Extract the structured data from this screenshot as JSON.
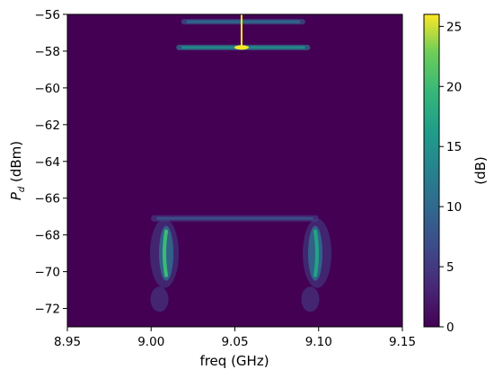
{
  "chart_data": {
    "type": "heatmap",
    "title": "",
    "xlabel": "freq (GHz)",
    "ylabel_main": "P",
    "ylabel_sub": "d",
    "ylabel_unit": " (dBm)",
    "xlim": [
      8.95,
      9.15
    ],
    "ylim": [
      -73,
      -56
    ],
    "x_ticks": [
      {
        "value": 8.95,
        "label": "8.95"
      },
      {
        "value": 9.0,
        "label": "9.00"
      },
      {
        "value": 9.05,
        "label": "9.05"
      },
      {
        "value": 9.1,
        "label": "9.10"
      },
      {
        "value": 9.15,
        "label": "9.15"
      }
    ],
    "y_ticks": [
      {
        "value": -56,
        "label": "−56"
      },
      {
        "value": -58,
        "label": "−58"
      },
      {
        "value": -60,
        "label": "−60"
      },
      {
        "value": -62,
        "label": "−62"
      },
      {
        "value": -64,
        "label": "−64"
      },
      {
        "value": -66,
        "label": "−66"
      },
      {
        "value": -68,
        "label": "−68"
      },
      {
        "value": -70,
        "label": "−70"
      },
      {
        "value": -72,
        "label": "−72"
      }
    ],
    "grid": false,
    "colormap": "viridis",
    "colorbar": {
      "label": "(dB)",
      "range": [
        0,
        26
      ],
      "ticks": [
        {
          "value": 0,
          "label": "0"
        },
        {
          "value": 5,
          "label": "5"
        },
        {
          "value": 10,
          "label": "10"
        },
        {
          "value": 15,
          "label": "15"
        },
        {
          "value": 20,
          "label": "20"
        },
        {
          "value": 25,
          "label": "25"
        }
      ]
    },
    "features": [
      {
        "name": "upper-band-top",
        "x_range": [
          9.018,
          9.092
        ],
        "y": -56.4,
        "peak_db": 8
      },
      {
        "name": "upper-band-main",
        "x_range": [
          9.015,
          9.095
        ],
        "y": -57.8,
        "peak_db": 12
      },
      {
        "name": "narrow-spike",
        "x": 9.054,
        "y_range": [
          -57.8,
          -56
        ],
        "peak_db": 26
      },
      {
        "name": "shoulder-plateau",
        "x_range": [
          9.0,
          9.1
        ],
        "y": -67.1,
        "peak_db": 5
      },
      {
        "name": "left-crescent",
        "x": 9.009,
        "y_range": [
          -70.2,
          -67.8
        ],
        "peak_db": 20
      },
      {
        "name": "right-crescent",
        "x": 9.098,
        "y_range": [
          -70.2,
          -67.8
        ],
        "peak_db": 17
      },
      {
        "name": "left-tail",
        "x": 9.005,
        "y": -71.5,
        "peak_db": 5
      },
      {
        "name": "right-tail",
        "x": 9.095,
        "y": -71.5,
        "peak_db": 5
      }
    ]
  }
}
